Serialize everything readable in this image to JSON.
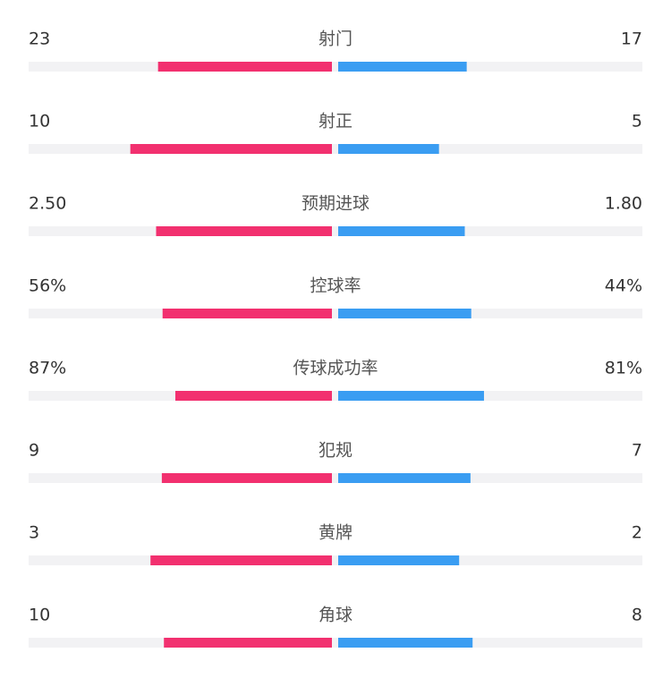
{
  "chart_data": {
    "type": "comparison-bar",
    "categories": [
      "射门",
      "射正",
      "预期进球",
      "控球率",
      "传球成功率",
      "犯规",
      "黄牌",
      "角球"
    ],
    "series": [
      {
        "color": "#f2306f",
        "values": [
          23,
          10,
          2.5,
          56,
          87,
          9,
          3,
          10
        ],
        "value_labels": [
          "23",
          "10",
          "2.50",
          "56%",
          "87%",
          "9",
          "3",
          "10"
        ]
      },
      {
        "color": "#3a9df2",
        "values": [
          17,
          5,
          1.8,
          44,
          81,
          7,
          2,
          8
        ],
        "value_labels": [
          "17",
          "5",
          "1.80",
          "44%",
          "81%",
          "7",
          "2",
          "8"
        ]
      }
    ],
    "track_color": "#f2f2f4"
  }
}
